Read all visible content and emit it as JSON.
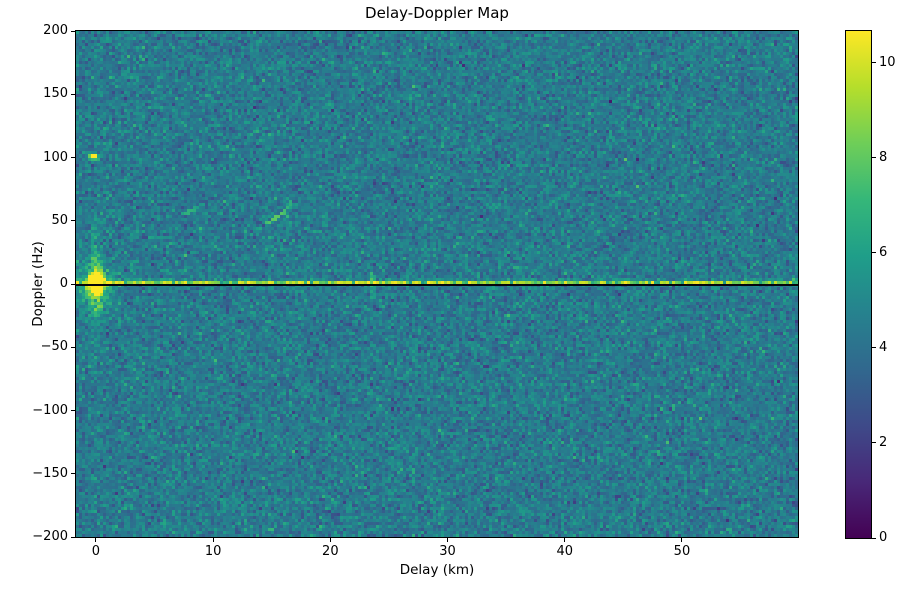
{
  "chart_data": {
    "type": "heatmap",
    "title": "Delay-Doppler Map",
    "xlabel": "Delay (km)",
    "ylabel": "Doppler (Hz)",
    "x_range": [
      -1.7,
      59.9
    ],
    "y_range": [
      -200,
      200
    ],
    "x_ticks": [
      0,
      10,
      20,
      30,
      40,
      50
    ],
    "y_ticks": [
      200,
      150,
      100,
      50,
      0,
      -50,
      -100,
      -150,
      -200
    ],
    "grid": "off",
    "colorbar": {
      "position": "right",
      "vmin": 0,
      "vmax": 10.67,
      "ticks": [
        0,
        2,
        4,
        6,
        8,
        10
      ]
    },
    "colormap": {
      "name": "viridis",
      "stops": [
        "#440154",
        "#482878",
        "#3e4a89",
        "#31688e",
        "#26828e",
        "#1f9e89",
        "#35b779",
        "#6ece58",
        "#b5de2b",
        "#fde725"
      ]
    },
    "background_noise": {
      "mean": 4.4,
      "std": 0.8
    },
    "features": [
      {
        "name": "zero-doppler-ridge",
        "type": "bright-horizontal-line",
        "doppler_hz": 1,
        "value_range": [
          5.4,
          10.7
        ]
      },
      {
        "name": "zero-doppler-null-line",
        "type": "dark-horizontal-line",
        "doppler_hz": 0,
        "color": "#05050d"
      },
      {
        "name": "direct-signal-blob",
        "type": "gaussian-peak",
        "delay_km": 0,
        "doppler_hz": 0,
        "peak_value": 10.67,
        "sigma_delay_km": 0.45,
        "sigma_doppler_hz": 4.5
      },
      {
        "name": "vertical-streak",
        "type": "vertical-streak",
        "delay_km": 23.55,
        "doppler_extent_hz": [
          -16,
          16
        ],
        "value": 6.5
      },
      {
        "name": "target-echo-dot",
        "type": "point-echo",
        "delay_km": -0.2,
        "doppler_hz": 100,
        "value": 9.5
      },
      {
        "name": "moving-target-arc-1",
        "type": "diagonal-arc",
        "delay_km": [
          14.6,
          16.7
        ],
        "doppler_hz": [
          49,
          65
        ],
        "value": 7.4
      },
      {
        "name": "moving-target-arc-2",
        "type": "diagonal-arc",
        "delay_km": [
          7.5,
          8.9
        ],
        "doppler_hz": [
          56,
          63
        ],
        "value": 6.3
      }
    ]
  }
}
